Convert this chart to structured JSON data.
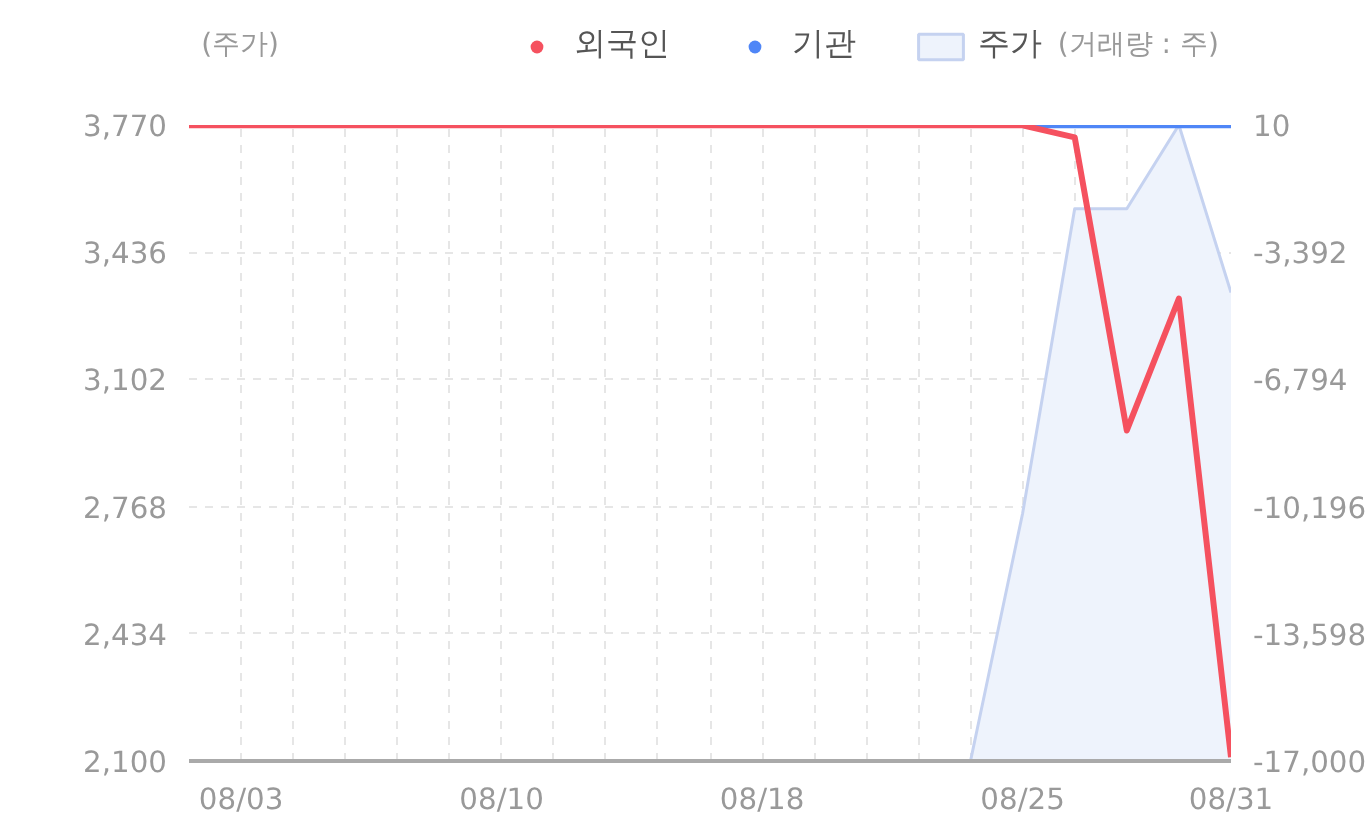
{
  "chart_data": {
    "type": "line",
    "ylabel": "(주가)",
    "y2label": "(거래량 : 주)",
    "categories": [
      null,
      "08/03",
      null,
      null,
      null,
      null,
      "08/10",
      null,
      null,
      null,
      null,
      "08/18",
      null,
      null,
      null,
      null,
      "08/25",
      null,
      null,
      null,
      "08/31"
    ],
    "series": [
      {
        "name": "외국인",
        "axis": "y2",
        "color": "#f5515f",
        "values": [
          0,
          0,
          0,
          0,
          0,
          0,
          0,
          0,
          0,
          0,
          0,
          0,
          0,
          0,
          0,
          0,
          0,
          -320,
          -8160,
          -4630,
          -16900
        ]
      },
      {
        "name": "기관",
        "axis": "y2",
        "color": "#4f86f7",
        "values": [
          null,
          null,
          null,
          null,
          null,
          null,
          null,
          null,
          null,
          null,
          null,
          null,
          null,
          null,
          null,
          null,
          0,
          0,
          0,
          0,
          0
        ]
      },
      {
        "name": "주가",
        "type": "area",
        "axis": "y",
        "color": "#c5d2f0",
        "values": [
          2100,
          2100,
          2100,
          2100,
          2100,
          2100,
          2100,
          2100,
          2100,
          2100,
          2100,
          2100,
          2100,
          2100,
          2100,
          2100,
          2750,
          3550,
          3550,
          3770,
          3330
        ]
      }
    ],
    "ylim": [
      2100,
      3770
    ],
    "yticks": [
      {
        "value": 2100,
        "label": "2,100"
      },
      {
        "value": 2434,
        "label": "2,434"
      },
      {
        "value": 2768,
        "label": "2,768"
      },
      {
        "value": 3102,
        "label": "3,102"
      },
      {
        "value": 3436,
        "label": "3,436"
      },
      {
        "value": 3770,
        "label": "3,770"
      }
    ],
    "y2lim": [
      -17000,
      10
    ],
    "y2ticks": [
      {
        "value": -17000,
        "label": "-17,000"
      },
      {
        "value": -13598,
        "label": "-13,598"
      },
      {
        "value": -10196,
        "label": "-10,196"
      },
      {
        "value": -6794,
        "label": "-6,794"
      },
      {
        "value": -3392,
        "label": "-3,392"
      },
      10
    ],
    "grid": true,
    "legend": "top"
  }
}
